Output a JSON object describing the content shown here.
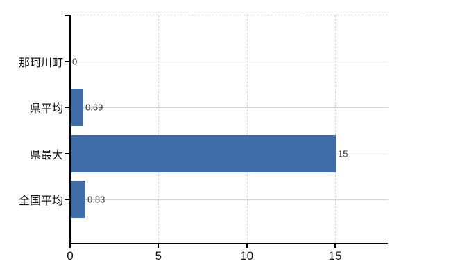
{
  "chart": {
    "background": "#ffffff",
    "bar_color": "#3e6da8",
    "h_grid_color": "#ccd6cb",
    "v_grid_color": "#d8d2d8",
    "top_border_color": "#d5ced5",
    "axis_color": "#000000",
    "category_label_color": "#111111",
    "tick_label_color": "#111111",
    "value_label_color": "#333333"
  },
  "chart_data": {
    "type": "bar",
    "orientation": "horizontal",
    "title": "",
    "xlabel": "",
    "ylabel": "",
    "categories": [
      "那珂川町",
      "県平均",
      "県最大",
      "全国平均"
    ],
    "values": [
      0,
      0.69,
      15,
      0.83
    ],
    "value_labels": [
      "0",
      "0.69",
      "15",
      "0.83"
    ],
    "x_ticks": [
      0,
      5,
      10,
      15
    ],
    "x_tick_labels": [
      "0",
      "5",
      "10",
      "15"
    ],
    "xlim": [
      0,
      18
    ],
    "grid": true,
    "legend": false
  }
}
